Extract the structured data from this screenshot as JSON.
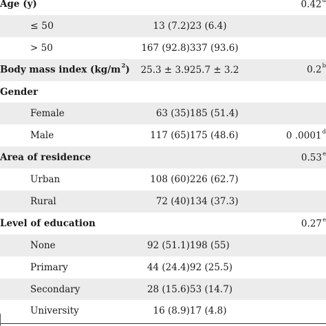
{
  "rows": [
    {
      "kind": "header",
      "label": "Age (y)",
      "v1": "",
      "v2": "",
      "p": "0.42",
      "p_sup": "d"
    },
    {
      "kind": "sub",
      "label": "≤ 50",
      "v1": "13 (7.2)",
      "v2": "23 (6.4)",
      "p": "",
      "p_sup": ""
    },
    {
      "kind": "sub",
      "label": "> 50",
      "v1": "167 (92.8)",
      "v2": "337 (93.6)",
      "p": "",
      "p_sup": ""
    },
    {
      "kind": "header",
      "label": "Body mass index (kg/m",
      "label_sup": "2",
      "label_tail": ")",
      "v1": "25.3 ± 3.9",
      "v2": "25.7 ± 3.2",
      "p": "0.2",
      "p_sup": "b"
    },
    {
      "kind": "header",
      "label": "Gender",
      "v1": "",
      "v2": "",
      "p": "",
      "p_sup": ""
    },
    {
      "kind": "sub",
      "label": "Female",
      "v1": "63 (35)",
      "v2": "185 (51.4)",
      "p": "",
      "p_sup": ""
    },
    {
      "kind": "sub",
      "label": "Male",
      "v1": "117 (65)",
      "v2": "175 (48.6)",
      "p": "0 .0001",
      "p_sup": "d"
    },
    {
      "kind": "header",
      "label": "Area of residence",
      "v1": "",
      "v2": "",
      "p": "0.53",
      "p_sup": "e"
    },
    {
      "kind": "sub",
      "label": "Urban",
      "v1": "108 (60)",
      "v2": "226 (62.7)",
      "p": "",
      "p_sup": ""
    },
    {
      "kind": "sub",
      "label": "Rural",
      "v1": "72 (40)",
      "v2": "134 (37.3)",
      "p": "",
      "p_sup": ""
    },
    {
      "kind": "header",
      "label": "Level of education",
      "v1": "",
      "v2": "",
      "p": "0.27",
      "p_sup": "e"
    },
    {
      "kind": "sub",
      "label": "None",
      "v1": "92 (51.1)",
      "v2": "198 (55)",
      "p": "",
      "p_sup": ""
    },
    {
      "kind": "sub",
      "label": "Primary",
      "v1": "44 (24.4)",
      "v2": "92 (25.5)",
      "p": "",
      "p_sup": ""
    },
    {
      "kind": "sub",
      "label": "Secondary",
      "v1": "28 (15.6)",
      "v2": "53 (14.7)",
      "p": "",
      "p_sup": ""
    },
    {
      "kind": "sub",
      "label": "University",
      "v1": "16 (8.9)",
      "v2": "17 (4.8)",
      "p": "",
      "p_sup": ""
    }
  ]
}
